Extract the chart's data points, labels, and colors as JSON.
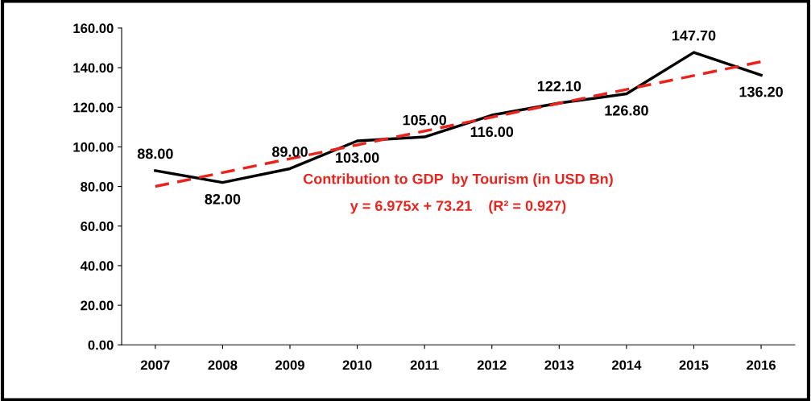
{
  "chart_data": {
    "type": "line",
    "categories": [
      "2007",
      "2008",
      "2009",
      "2010",
      "2011",
      "2012",
      "2013",
      "2014",
      "2015",
      "2016"
    ],
    "series": [
      {
        "color": "#000000",
        "values": [
          88.0,
          82.0,
          89.0,
          103.0,
          105.0,
          116.0,
          122.1,
          126.8,
          147.7,
          136.2
        ],
        "value_labels": [
          "88.00",
          "82.00",
          "89.00",
          "103.00",
          "105.00",
          "116.00",
          "122.10",
          "126.80",
          "147.70",
          "136.20"
        ],
        "line_style": "solid"
      },
      {
        "type": "line",
        "color": "#e8241e",
        "line_style": "dashed",
        "values": [
          80,
          87,
          94,
          101,
          108,
          115,
          122,
          129,
          136,
          143
        ]
      }
    ],
    "ylim": [
      0,
      160
    ],
    "yticks": [
      {
        "value": 0,
        "label": "0.00"
      },
      {
        "value": 20,
        "label": "20.00"
      },
      {
        "value": 40,
        "label": "40.00"
      },
      {
        "value": 60,
        "label": "60.00"
      },
      {
        "value": 80,
        "label": "80.00"
      },
      {
        "value": 100,
        "label": "100.00"
      },
      {
        "value": 120,
        "label": "120.00"
      },
      {
        "value": 140,
        "label": "140.00"
      },
      {
        "value": 160,
        "label": "160.00"
      }
    ],
    "annotations": [
      "Contribution to GDP  by Tourism (in USD Bn)",
      "y = 6.975x + 73.21    (R² = 0.927)"
    ],
    "grid": false,
    "legend": false,
    "marker": "none"
  }
}
